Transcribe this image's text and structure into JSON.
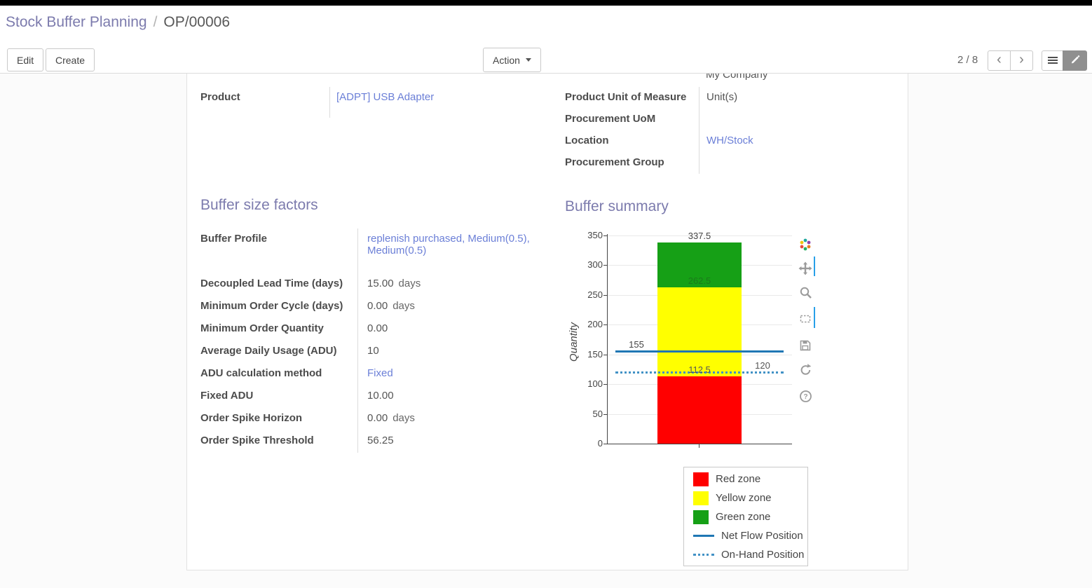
{
  "breadcrumb": {
    "parent": "Stock Buffer Planning",
    "separator": "/",
    "current": "OP/00006"
  },
  "control_panel": {
    "edit_label": "Edit",
    "create_label": "Create",
    "action_label": "Action",
    "pager": "2 / 8"
  },
  "form": {
    "partial_top_value": "My Company",
    "product": {
      "label": "Product",
      "value": "[ADPT] USB Adapter"
    },
    "right_group": {
      "rows": [
        {
          "label": "Product Unit of Measure",
          "value": "Unit(s)"
        },
        {
          "label": "Procurement UoM",
          "value": ""
        },
        {
          "label": "Location",
          "value": "WH/Stock"
        },
        {
          "label": "Procurement Group",
          "value": ""
        }
      ]
    },
    "buffer_factors": {
      "title": "Buffer size factors",
      "rows": [
        {
          "label": "Buffer Profile",
          "value": "replenish purchased, Medium(0.5), Medium(0.5)"
        },
        {
          "label": "Decoupled Lead Time (days)",
          "value": "15.00",
          "suffix": "days"
        },
        {
          "label": "Minimum Order Cycle (days)",
          "value": "0.00",
          "suffix": "days"
        },
        {
          "label": "Minimum Order Quantity",
          "value": "0.00"
        },
        {
          "label": "Average Daily Usage (ADU)",
          "value": "10"
        },
        {
          "label": "ADU calculation method",
          "value": "Fixed"
        },
        {
          "label": "Fixed ADU",
          "value": "10.00"
        },
        {
          "label": "Order Spike Horizon",
          "value": "0.00",
          "suffix": "days"
        },
        {
          "label": "Order Spike Threshold",
          "value": "56.25"
        }
      ]
    },
    "buffer_summary": {
      "title": "Buffer summary"
    }
  },
  "chart_data": {
    "type": "bar",
    "title": "Buffer summary",
    "ylabel": "Quantity",
    "ylim": [
      0,
      350
    ],
    "yticks": [
      0,
      50,
      100,
      150,
      200,
      250,
      300,
      350
    ],
    "grid": "horizontal",
    "zones": [
      {
        "name": "Red zone",
        "from": 0,
        "to": 112.5,
        "color": "#ff0000"
      },
      {
        "name": "Yellow zone",
        "from": 112.5,
        "to": 262.5,
        "color": "#ffff00"
      },
      {
        "name": "Green zone",
        "from": 262.5,
        "to": 337.5,
        "color": "#16a016"
      }
    ],
    "lines": [
      {
        "name": "Net Flow Position",
        "value": 155,
        "style": "solid",
        "color": "#1f77b4"
      },
      {
        "name": "On-Hand Position",
        "value": 120,
        "style": "dotted",
        "color": "#4292c6"
      }
    ],
    "annotations": [
      {
        "text": "337.5",
        "at": 337.5,
        "anchor": "center",
        "color": "#444444"
      },
      {
        "text": "262.5",
        "at": 262.5,
        "anchor": "center",
        "color": "#1b7a1b"
      },
      {
        "text": "155",
        "at": 155,
        "anchor": "left",
        "color": "#444444"
      },
      {
        "text": "112.5",
        "at": 112.5,
        "anchor": "center",
        "color": "#555555"
      },
      {
        "text": "120",
        "at": 120,
        "anchor": "right",
        "color": "#555555"
      }
    ],
    "legend": [
      "Red zone",
      "Yellow zone",
      "Green zone",
      "Net Flow Position",
      "On-Hand Position"
    ],
    "legend_swatches": [
      {
        "kind": "box",
        "color": "#ff0000"
      },
      {
        "kind": "box",
        "color": "#ffff00"
      },
      {
        "kind": "box",
        "color": "#16a016"
      },
      {
        "kind": "line",
        "color": "#1f77b4"
      },
      {
        "kind": "dotted",
        "color": "#4292c6"
      }
    ],
    "legend_position": "bottom-right"
  }
}
